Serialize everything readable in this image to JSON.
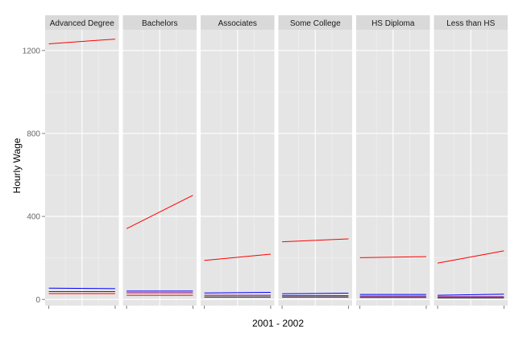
{
  "chart_data": {
    "type": "line",
    "xlabel": "2001 - 2002",
    "ylabel": "Hourly Wage",
    "ylim": [
      -30,
      1300
    ],
    "yticks": [
      0,
      400,
      800,
      1200
    ],
    "x": [
      2001,
      2002
    ],
    "grid": true,
    "facets": [
      {
        "label": "Advanced Degree",
        "series": [
          {
            "color": "#ff0000",
            "values": [
              1232,
              1255
            ]
          },
          {
            "color": "#0000ff",
            "values": [
              54,
              52
            ]
          },
          {
            "color": "#800080",
            "values": [
              38,
              38
            ]
          },
          {
            "color": "#ff0000",
            "values": [
              28,
              28
            ]
          }
        ]
      },
      {
        "label": "Bachelors",
        "series": [
          {
            "color": "#ff0000",
            "values": [
              341,
              502
            ]
          },
          {
            "color": "#0000ff",
            "values": [
              40,
              40
            ]
          },
          {
            "color": "#800080",
            "values": [
              32,
              32
            ]
          },
          {
            "color": "#ff0000",
            "values": [
              20,
              20
            ]
          }
        ]
      },
      {
        "label": "Associates",
        "series": [
          {
            "color": "#ff0000",
            "values": [
              188,
              218
            ]
          },
          {
            "color": "#0000ff",
            "values": [
              31,
              34
            ]
          },
          {
            "color": "#800080",
            "values": [
              20,
              20
            ]
          },
          {
            "color": "#000000",
            "values": [
              12,
              12
            ]
          }
        ]
      },
      {
        "label": "Some College",
        "series": [
          {
            "color": "#ff0000",
            "values": [
              278,
              292
            ]
          },
          {
            "color": "#0000ff",
            "values": [
              27,
              30
            ]
          },
          {
            "color": "#800080",
            "values": [
              18,
              18
            ]
          },
          {
            "color": "#000000",
            "values": [
              12,
              12
            ]
          }
        ]
      },
      {
        "label": "HS Diploma",
        "series": [
          {
            "color": "#ff0000",
            "values": [
              201,
              206
            ]
          },
          {
            "color": "#0000ff",
            "values": [
              24,
              24
            ]
          },
          {
            "color": "#800080",
            "values": [
              16,
              16
            ]
          },
          {
            "color": "#000000",
            "values": [
              10,
              10
            ]
          }
        ]
      },
      {
        "label": "Less than HS",
        "series": [
          {
            "color": "#ff0000",
            "values": [
              175,
              234
            ]
          },
          {
            "color": "#0000ff",
            "values": [
              20,
              25
            ]
          },
          {
            "color": "#800080",
            "values": [
              13,
              13
            ]
          },
          {
            "color": "#000000",
            "values": [
              8,
              8
            ]
          }
        ]
      }
    ]
  }
}
